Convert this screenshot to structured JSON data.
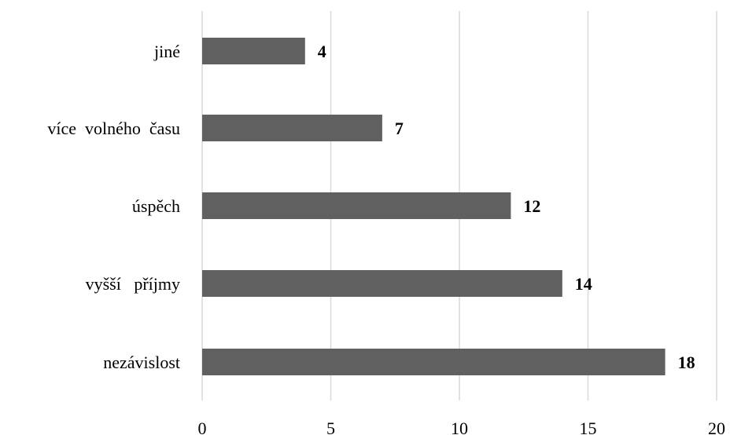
{
  "chart_data": {
    "type": "bar",
    "orientation": "horizontal",
    "categories": [
      "jiné",
      "více  volného  času",
      "úspěch",
      "vyšší   příjmy",
      "nezávislost"
    ],
    "values": [
      4,
      7,
      12,
      14,
      18
    ],
    "xlim": [
      0,
      20
    ],
    "xticks": [
      0,
      5,
      10,
      15,
      20
    ],
    "grid": "vertical",
    "legend": "none",
    "bar_color": "#606060",
    "grid_color": "#d9d9d9"
  }
}
